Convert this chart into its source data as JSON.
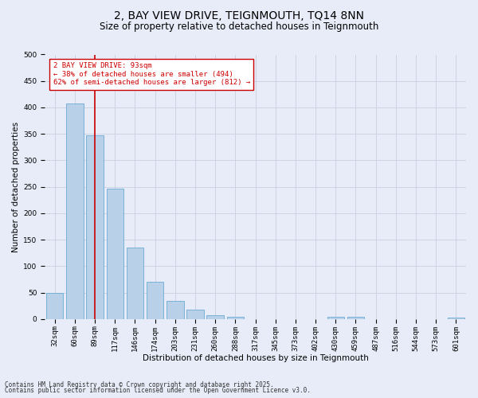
{
  "title_line1": "2, BAY VIEW DRIVE, TEIGNMOUTH, TQ14 8NN",
  "title_line2": "Size of property relative to detached houses in Teignmouth",
  "xlabel": "Distribution of detached houses by size in Teignmouth",
  "ylabel": "Number of detached properties",
  "categories": [
    "32sqm",
    "60sqm",
    "89sqm",
    "117sqm",
    "146sqm",
    "174sqm",
    "203sqm",
    "231sqm",
    "260sqm",
    "288sqm",
    "317sqm",
    "345sqm",
    "373sqm",
    "402sqm",
    "430sqm",
    "459sqm",
    "487sqm",
    "516sqm",
    "544sqm",
    "573sqm",
    "601sqm"
  ],
  "values": [
    50,
    407,
    348,
    246,
    135,
    70,
    35,
    18,
    8,
    5,
    0,
    0,
    0,
    0,
    5,
    5,
    0,
    0,
    0,
    0,
    3
  ],
  "bar_color": "#b8d0e8",
  "bar_edge_color": "#6aaad4",
  "vline_x": 2,
  "vline_color": "#cc0000",
  "annotation_text": "2 BAY VIEW DRIVE: 93sqm\n← 38% of detached houses are smaller (494)\n62% of semi-detached houses are larger (812) →",
  "annotation_box_color": "#cc0000",
  "annotation_text_color": "#cc0000",
  "ylim": [
    0,
    500
  ],
  "yticks": [
    0,
    50,
    100,
    150,
    200,
    250,
    300,
    350,
    400,
    450,
    500
  ],
  "background_color": "#e8ecf8",
  "plot_background": "#e8ecf8",
  "grid_color": "#c8cfe0",
  "footer_line1": "Contains HM Land Registry data © Crown copyright and database right 2025.",
  "footer_line2": "Contains public sector information licensed under the Open Government Licence v3.0.",
  "title_fontsize": 10,
  "subtitle_fontsize": 8.5,
  "axis_label_fontsize": 7.5,
  "tick_fontsize": 6.5,
  "annotation_fontsize": 6.5,
  "footer_fontsize": 5.5
}
